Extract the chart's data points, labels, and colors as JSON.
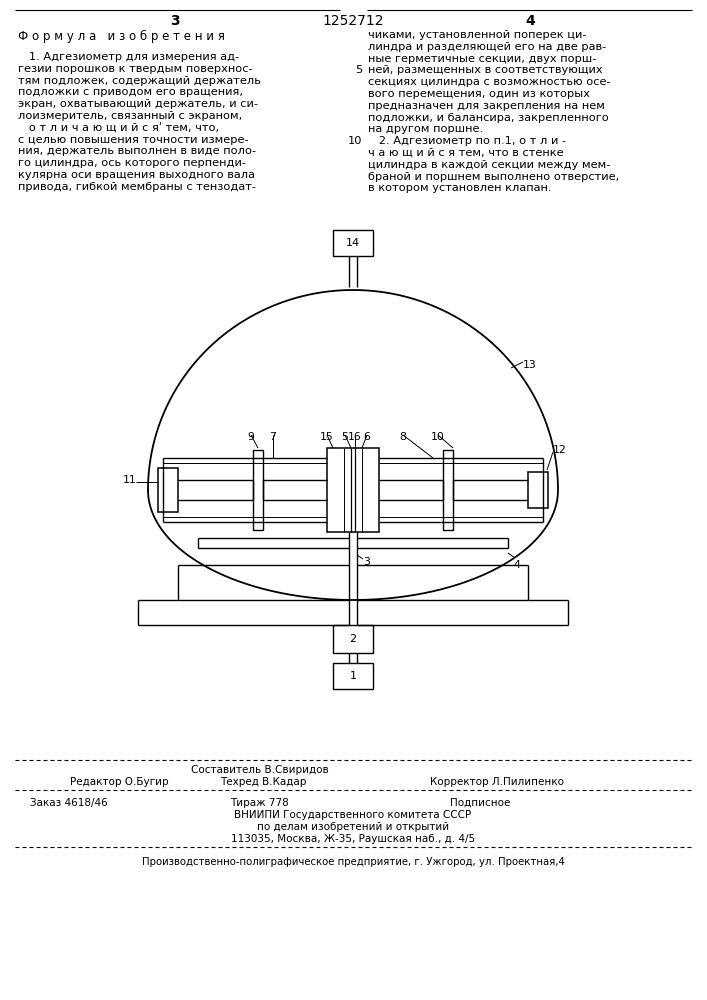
{
  "page_number_left": "3",
  "page_number_right": "4",
  "patent_number": "1252712",
  "formula_title": "Ф о р м у л а   и з о б р е т е н и я",
  "left_col_lines": [
    "   1. Адгезиометр для измерения ад-",
    "гезии порошков к твердым поверхнос-",
    "тям подложек, содержащий держатель",
    "подложки с приводом его вращения,",
    "экран, охватывающий держатель, и си-",
    "лоизмеритель, связанный с экраном,",
    "   о т л и ч а ю щ и й с яʹ тем, что,",
    "с целью повышения точности измере-",
    "ния, держатель выполнен в виде поло-",
    "го цилиндра, ось которого перпенди-",
    "кулярна оси вращения выходного вала",
    "привода, гибкой мембраны с тензодат-"
  ],
  "right_col_lines": [
    "чиками, установленной поперек ци-",
    "линдра и разделяющей его на две рав-",
    "ные герметичные секции, двух порш-",
    "ней, размещенных в соответствующих",
    "секциях цилиндра с возможностью осе-",
    "вого перемещения, один из которых",
    "предназначен для закрепления на нем",
    "подложки, и балансира, закрепленного",
    "на другом поршне.",
    "   2. Адгезиометр по п.1, о т л и -",
    "ч а ю щ и й с я тем, что в стенке",
    "цилиндра в каждой секции между мем-",
    "браной и поршнем выполнено отверстие,",
    "в котором установлен клапан."
  ],
  "right_line_numbers": {
    "3": "5",
    "9": "10"
  },
  "footer_editor": "Редактор О.Бугир",
  "footer_compiler": "Составитель В.Свиридов",
  "footer_techred": "Техред В.Кадар",
  "footer_corrector": "Корректор Л.Пилипенко",
  "footer_order": "Заказ 4618/46",
  "footer_tirazh": "Тираж 778",
  "footer_podpisnoe": "Подписное",
  "footer_vnipi": "ВНИИПИ Государственного комитета СССР",
  "footer_po_delam": "по делам изобретений и открытий",
  "footer_address": "113035, Москва, Ж-35, Раушская наб., д. 4/5",
  "footer_print": "Производственно-полиграфическое предприятие, г. Ужгород, ул. Проектная,4",
  "bg_color": "#ffffff"
}
